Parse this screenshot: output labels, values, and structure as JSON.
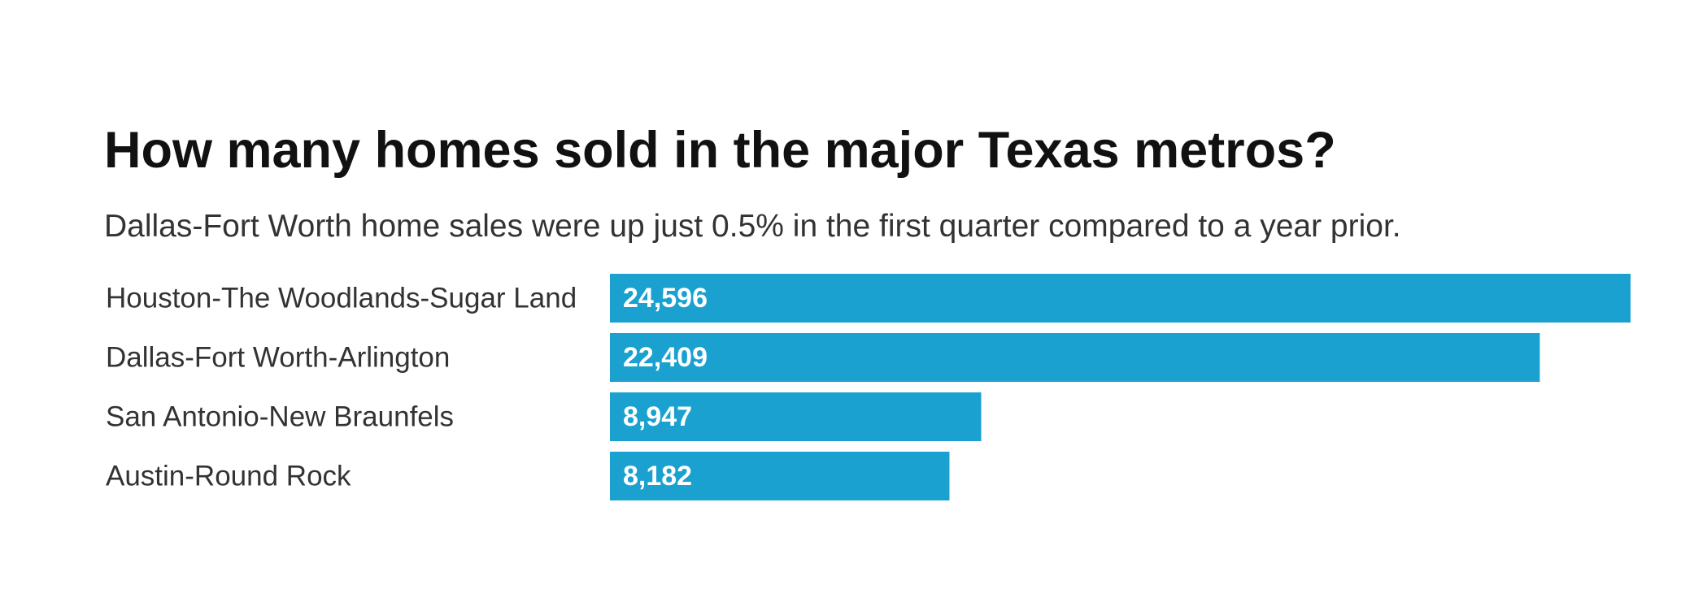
{
  "chart_data": {
    "type": "bar",
    "orientation": "horizontal",
    "title": "How many homes sold in the major Texas metros?",
    "subtitle": "Dallas-Fort Worth home sales were up just 0.5% in the first quarter compared to a year prior.",
    "categories": [
      "Houston-The Woodlands-Sugar Land",
      "Dallas-Fort Worth-Arlington",
      "San Antonio-New Braunfels",
      "Austin-Round Rock"
    ],
    "values": [
      24596,
      22409,
      8947,
      8182
    ],
    "value_labels": [
      "24,596",
      "22,409",
      "8,947",
      "8,182"
    ],
    "bar_color": "#1aa1cf",
    "value_label_color": "#ffffff",
    "label_position": "inside-bar-left",
    "xlim": [
      0,
      24596
    ],
    "grid": false,
    "legend": "none"
  }
}
